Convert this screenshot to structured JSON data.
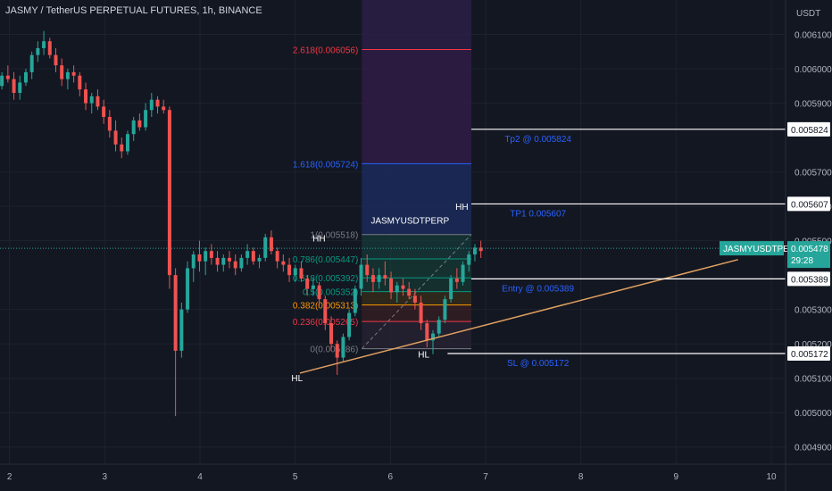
{
  "header": {
    "title": "JASMY / TetherUS PERPETUAL FUTURES, 1h, BINANCE",
    "currency": "USDT"
  },
  "colors": {
    "background": "#131722",
    "up": "#26a69a",
    "down": "#ef5350",
    "grid": "#1e222d",
    "trendline": "#e0a060",
    "note": "#2962ff"
  },
  "chart_data": {
    "type": "candlestick",
    "symbol": "JASMYUSDTPERP",
    "ylim": [
      0.00485,
      0.0062
    ],
    "xlim": [
      1.9,
      10.15
    ],
    "x_ticks": [
      "2",
      "3",
      "4",
      "5",
      "6",
      "7",
      "8",
      "9",
      "10"
    ],
    "y_ticks": [
      "0.006100",
      "0.006000",
      "0.005900",
      "0.005700",
      "0.005600",
      "0.005500",
      "0.005300",
      "0.005200",
      "0.005100",
      "0.005000",
      "0.004900"
    ],
    "candles_ohlc": [
      [
        0.00595,
        0.00599,
        0.00594,
        0.00598
      ],
      [
        0.00598,
        0.00601,
        0.00596,
        0.00597
      ],
      [
        0.00597,
        0.00599,
        0.00591,
        0.00593
      ],
      [
        0.00593,
        0.00598,
        0.00591,
        0.00596
      ],
      [
        0.00596,
        0.006,
        0.00595,
        0.00599
      ],
      [
        0.00599,
        0.00605,
        0.00597,
        0.00604
      ],
      [
        0.00604,
        0.00608,
        0.00602,
        0.00606
      ],
      [
        0.00606,
        0.00611,
        0.00604,
        0.00608
      ],
      [
        0.00608,
        0.00609,
        0.00603,
        0.00604
      ],
      [
        0.00604,
        0.00606,
        0.00599,
        0.00601
      ],
      [
        0.00601,
        0.00603,
        0.00595,
        0.00597
      ],
      [
        0.00597,
        0.006,
        0.00594,
        0.00599
      ],
      [
        0.00599,
        0.00601,
        0.00596,
        0.00598
      ],
      [
        0.00598,
        0.00599,
        0.00592,
        0.00594
      ],
      [
        0.00594,
        0.00596,
        0.00588,
        0.0059
      ],
      [
        0.0059,
        0.00593,
        0.00587,
        0.00592
      ],
      [
        0.00592,
        0.00594,
        0.00588,
        0.00589
      ],
      [
        0.00589,
        0.00591,
        0.00584,
        0.00586
      ],
      [
        0.00586,
        0.00588,
        0.0058,
        0.00582
      ],
      [
        0.00582,
        0.00585,
        0.00576,
        0.00578
      ],
      [
        0.00578,
        0.0058,
        0.00574,
        0.00576
      ],
      [
        0.00576,
        0.00582,
        0.00575,
        0.00581
      ],
      [
        0.00581,
        0.00586,
        0.00579,
        0.00585
      ],
      [
        0.00585,
        0.00587,
        0.00582,
        0.00583
      ],
      [
        0.00583,
        0.0059,
        0.00582,
        0.00588
      ],
      [
        0.00588,
        0.00593,
        0.00586,
        0.00591
      ],
      [
        0.00591,
        0.00592,
        0.00587,
        0.00589
      ],
      [
        0.00589,
        0.00591,
        0.00587,
        0.00588
      ],
      [
        0.00588,
        0.00589,
        0.00536,
        0.0054
      ],
      [
        0.0054,
        0.00542,
        0.00499,
        0.00518
      ],
      [
        0.00518,
        0.00532,
        0.00516,
        0.0053
      ],
      [
        0.0053,
        0.00544,
        0.00529,
        0.00542
      ],
      [
        0.00542,
        0.00547,
        0.00538,
        0.00546
      ],
      [
        0.00546,
        0.0055,
        0.00541,
        0.00544
      ],
      [
        0.00544,
        0.00548,
        0.0054,
        0.00547
      ],
      [
        0.00547,
        0.00549,
        0.00543,
        0.00545
      ],
      [
        0.00545,
        0.00547,
        0.00541,
        0.00543
      ],
      [
        0.00543,
        0.00546,
        0.00541,
        0.00545
      ],
      [
        0.00545,
        0.00547,
        0.00542,
        0.00544
      ],
      [
        0.00544,
        0.00546,
        0.0054,
        0.00542
      ],
      [
        0.00542,
        0.00546,
        0.00541,
        0.00545
      ],
      [
        0.00545,
        0.00549,
        0.00543,
        0.00547
      ],
      [
        0.00547,
        0.00548,
        0.00543,
        0.00544
      ],
      [
        0.00544,
        0.00546,
        0.00542,
        0.00545
      ],
      [
        0.00545,
        0.00552,
        0.00544,
        0.00551
      ],
      [
        0.00551,
        0.00553,
        0.00546,
        0.00547
      ],
      [
        0.00547,
        0.00548,
        0.00542,
        0.00544
      ],
      [
        0.00544,
        0.00546,
        0.00541,
        0.00543
      ],
      [
        0.00543,
        0.00545,
        0.00538,
        0.0054
      ],
      [
        0.0054,
        0.00543,
        0.00538,
        0.00542
      ],
      [
        0.00542,
        0.00544,
        0.00538,
        0.00539
      ],
      [
        0.00539,
        0.0054,
        0.00534,
        0.00536
      ],
      [
        0.00536,
        0.00539,
        0.00534,
        0.00537
      ],
      [
        0.00537,
        0.00538,
        0.00531,
        0.00533
      ],
      [
        0.00533,
        0.00534,
        0.00524,
        0.00526
      ],
      [
        0.00526,
        0.00528,
        0.00518,
        0.0052
      ],
      [
        0.0052,
        0.00521,
        0.00511,
        0.00516
      ],
      [
        0.00516,
        0.00523,
        0.00515,
        0.00522
      ],
      [
        0.00522,
        0.0053,
        0.00521,
        0.00529
      ],
      [
        0.00529,
        0.00537,
        0.00528,
        0.00536
      ],
      [
        0.00536,
        0.00545,
        0.00534,
        0.00543
      ],
      [
        0.00543,
        0.00546,
        0.00538,
        0.0054
      ],
      [
        0.0054,
        0.00542,
        0.00535,
        0.00538
      ],
      [
        0.00538,
        0.00542,
        0.00536,
        0.0054
      ],
      [
        0.0054,
        0.00544,
        0.00537,
        0.00539
      ],
      [
        0.00539,
        0.00541,
        0.00533,
        0.00535
      ],
      [
        0.00535,
        0.00538,
        0.00532,
        0.00537
      ],
      [
        0.00537,
        0.00539,
        0.00534,
        0.00536
      ],
      [
        0.00536,
        0.00538,
        0.00533,
        0.00534
      ],
      [
        0.00534,
        0.00536,
        0.0053,
        0.00532
      ],
      [
        0.00532,
        0.00534,
        0.00524,
        0.00526
      ],
      [
        0.00526,
        0.00527,
        0.00519,
        0.00521
      ],
      [
        0.00521,
        0.00524,
        0.00517,
        0.00523
      ],
      [
        0.00523,
        0.00528,
        0.00522,
        0.00527
      ],
      [
        0.00527,
        0.00534,
        0.00526,
        0.00533
      ],
      [
        0.00533,
        0.0054,
        0.00532,
        0.00539
      ],
      [
        0.00539,
        0.00542,
        0.00536,
        0.00538
      ],
      [
        0.00538,
        0.00544,
        0.00537,
        0.00543
      ],
      [
        0.00543,
        0.00547,
        0.00541,
        0.00546
      ],
      [
        0.00546,
        0.00549,
        0.00544,
        0.00548
      ],
      [
        0.00548,
        0.0055,
        0.00545,
        0.00547
      ]
    ],
    "fib_levels": [
      {
        "label": "2.618(0.006056)",
        "value": 0.006056,
        "color": "#f23645"
      },
      {
        "label": "1.618(0.005724)",
        "value": 0.005724,
        "color": "#2962ff"
      },
      {
        "label": "1(0.005518)",
        "value": 0.005518,
        "color": "#787b86"
      },
      {
        "label": "0.786(0.005447)",
        "value": 0.005447,
        "color": "#089981"
      },
      {
        "label": "0.618(0.005392)",
        "value": 0.005392,
        "color": "#089981"
      },
      {
        "label": "0.5(0.005352)",
        "value": 0.005352,
        "color": "#089981"
      },
      {
        "label": "0.382(0.005313)",
        "value": 0.005313,
        "color": "#ff9800"
      },
      {
        "label": "0.236(0.005265)",
        "value": 0.005265,
        "color": "#f23645"
      },
      {
        "label": "0(0.005186)",
        "value": 0.005186,
        "color": "#787b86"
      }
    ],
    "fib_x_range": [
      5.7,
      6.85
    ],
    "levels": [
      {
        "value": 0.005824,
        "label": "0.005824",
        "note": "Tp2 @ 0.005824",
        "x_start": 6.85
      },
      {
        "value": 0.005607,
        "label": "0.005607",
        "note": "TP1 0.005607",
        "x_start": 6.85
      },
      {
        "value": 0.005389,
        "label": "0.005389",
        "note": "Entry @ 0.005389",
        "x_start": 6.85
      },
      {
        "value": 0.005172,
        "label": "0.005172",
        "note": "SL @ 0.005172",
        "x_start": 6.6
      }
    ],
    "trendline": {
      "x1": 5.05,
      "y1": 0.005115,
      "x2": 9.65,
      "y2": 0.005445
    },
    "diagonal": {
      "x1": 5.7,
      "y1": 0.005186,
      "x2": 6.85,
      "y2": 0.005518
    },
    "current_price": {
      "value": 0.005478,
      "label": "0.005478",
      "symbol": "JASMYUSDTPERP",
      "countdown": "29:28"
    },
    "swing_labels": [
      {
        "text": "HH",
        "x": 5.25,
        "y": 0.005498
      },
      {
        "text": "HH",
        "x": 6.75,
        "y": 0.00559
      },
      {
        "text": "HL",
        "x": 5.02,
        "y": 0.005092
      },
      {
        "text": "HL",
        "x": 6.35,
        "y": 0.00516
      }
    ],
    "box_label": "JASMYUSDTPERP"
  }
}
